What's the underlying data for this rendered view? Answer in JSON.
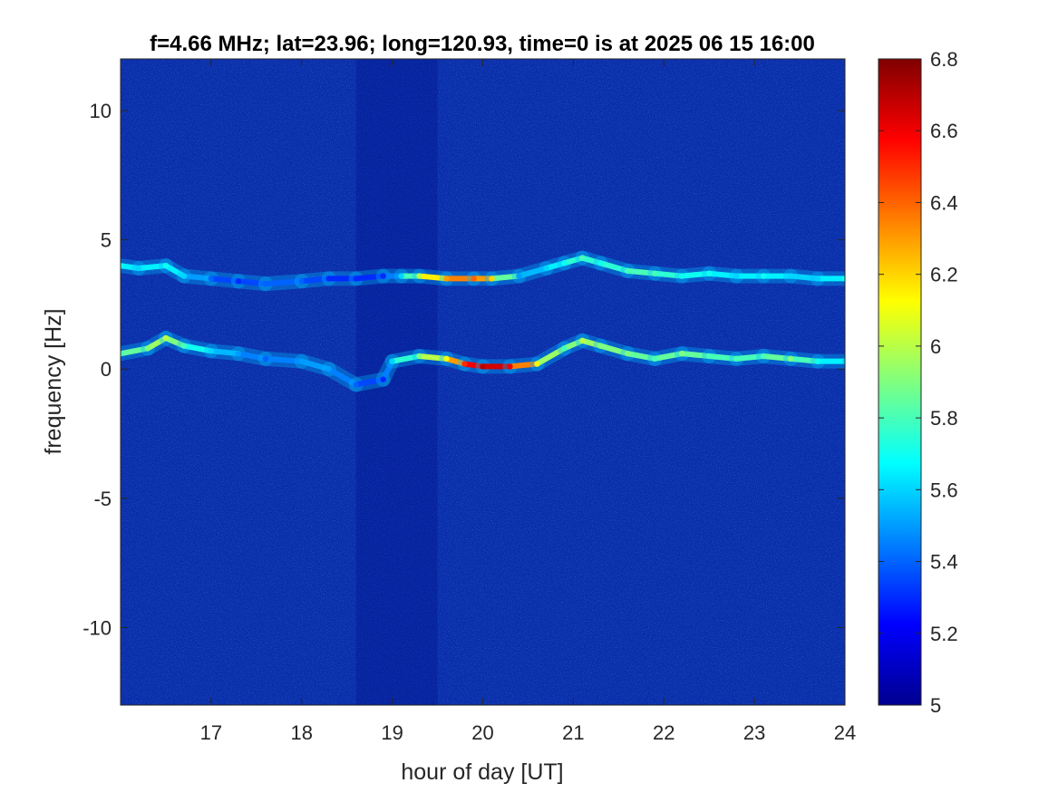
{
  "chart_data": {
    "type": "heatmap",
    "title": "f=4.66 MHz;  lat=23.96; long=120.93, time=0 is at 2025 06 15 16:00",
    "xlabel": "hour of day [UT]",
    "ylabel": "frequency [Hz]",
    "xlim": [
      16,
      24
    ],
    "ylim": [
      -13,
      12
    ],
    "x_ticks": [
      17,
      18,
      19,
      20,
      21,
      22,
      23,
      24
    ],
    "x_tick_labels": [
      "17",
      "18",
      "19",
      "20",
      "21",
      "22",
      "23",
      "24"
    ],
    "y_ticks": [
      10,
      5,
      0,
      -5,
      -10
    ],
    "y_tick_labels": [
      "10",
      "5",
      "0",
      "-5",
      "-10"
    ],
    "colormap": "jet",
    "background_color": "#0a2ca8",
    "colorbar": {
      "clim": [
        5,
        6.8
      ],
      "ticks": [
        6.8,
        6.6,
        6.4,
        6.2,
        6,
        5.8,
        5.6,
        5.4,
        5.2,
        5
      ],
      "tick_labels": [
        "6.8",
        "6.6",
        "6.4",
        "6.2",
        "6",
        "5.8",
        "5.6",
        "5.4",
        "5.2",
        "5"
      ]
    },
    "series": [
      {
        "x": [
          16.0,
          16.3,
          16.5,
          16.7,
          17.0,
          17.3,
          17.6,
          18.0,
          18.3,
          18.6,
          18.9,
          19.0,
          19.3,
          19.6,
          19.8,
          20.0,
          20.3,
          20.6,
          20.9,
          21.1,
          21.3,
          21.6,
          21.9,
          22.2,
          22.5,
          22.8,
          23.1,
          23.4,
          23.7,
          24.0
        ],
        "values": [
          0.6,
          0.8,
          1.2,
          0.9,
          0.7,
          0.6,
          0.4,
          0.3,
          0.0,
          -0.6,
          -0.4,
          0.3,
          0.5,
          0.4,
          0.2,
          0.1,
          0.1,
          0.2,
          0.8,
          1.1,
          0.9,
          0.6,
          0.4,
          0.6,
          0.5,
          0.4,
          0.5,
          0.4,
          0.3,
          0.3
        ],
        "intensity": [
          5.8,
          5.9,
          6.0,
          5.8,
          5.6,
          5.5,
          5.4,
          5.5,
          5.5,
          5.4,
          5.3,
          5.6,
          5.9,
          6.1,
          6.5,
          6.7,
          6.6,
          6.1,
          5.8,
          6.0,
          5.9,
          5.9,
          5.8,
          5.9,
          5.8,
          5.8,
          5.8,
          5.9,
          5.7,
          5.6
        ]
      },
      {
        "x": [
          16.0,
          16.2,
          16.5,
          16.7,
          17.0,
          17.3,
          17.6,
          18.0,
          18.3,
          18.6,
          18.9,
          19.1,
          19.3,
          19.6,
          19.9,
          20.1,
          20.4,
          20.7,
          20.9,
          21.1,
          21.3,
          21.6,
          21.9,
          22.2,
          22.5,
          22.8,
          23.1,
          23.4,
          23.7,
          24.0
        ],
        "values": [
          4.0,
          3.9,
          4.0,
          3.6,
          3.5,
          3.4,
          3.3,
          3.4,
          3.5,
          3.5,
          3.6,
          3.6,
          3.6,
          3.5,
          3.5,
          3.5,
          3.6,
          3.9,
          4.1,
          4.3,
          4.1,
          3.8,
          3.7,
          3.6,
          3.7,
          3.6,
          3.6,
          3.6,
          3.5,
          3.5
        ],
        "intensity": [
          5.7,
          5.6,
          5.7,
          5.6,
          5.4,
          5.3,
          5.4,
          5.4,
          5.3,
          5.3,
          5.3,
          5.6,
          6.0,
          6.3,
          6.4,
          6.2,
          5.5,
          5.6,
          5.7,
          5.8,
          5.7,
          5.8,
          5.8,
          5.7,
          5.7,
          5.6,
          5.7,
          5.6,
          5.6,
          5.7
        ]
      }
    ],
    "quiet_band_x": [
      18.6,
      19.5
    ]
  }
}
